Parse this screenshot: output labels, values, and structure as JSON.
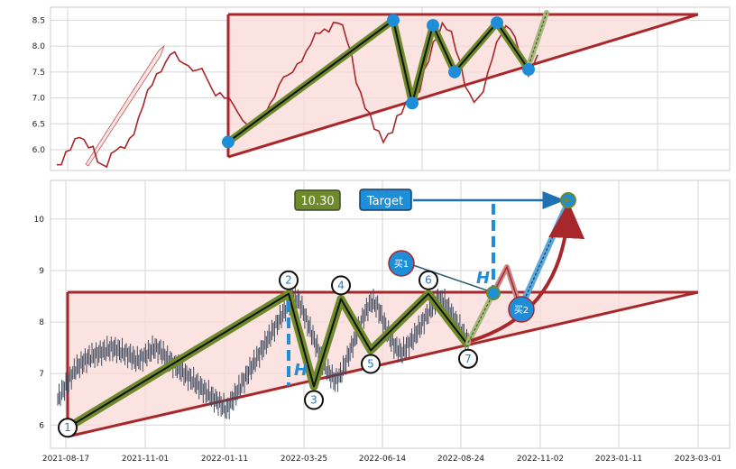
{
  "chart_data": [
    {
      "type": "line",
      "panel": "overview",
      "ylim": [
        5.6,
        8.75
      ],
      "y_ticks": [
        "6.0",
        "6.5",
        "7.0",
        "7.5",
        "8.0",
        "8.5"
      ],
      "grid": true,
      "colors": {
        "price": "#a8272b",
        "pattern": "#a8272b",
        "fill": "#f8dad6",
        "zigzag": "#6e8a2a",
        "node": "#1f8ed8"
      },
      "series": [
        {
          "name": "",
          "values": [
            5.65,
            5.72,
            5.85,
            6.05,
            6.2,
            6.35,
            6.15,
            6.05,
            5.95,
            5.8,
            5.7,
            5.78,
            5.9,
            6.0,
            5.95,
            6.05,
            6.2,
            6.4,
            6.6,
            6.85,
            7.05,
            7.25,
            7.45,
            7.6,
            7.7,
            7.85,
            7.8,
            7.7,
            7.65,
            7.7,
            7.55,
            7.55,
            7.5,
            7.35,
            7.2,
            7.1,
            7.15,
            7.0,
            6.95,
            6.8,
            6.7,
            6.6,
            6.55,
            6.5,
            6.45,
            6.55,
            6.7,
            6.9,
            7.1,
            7.25,
            7.4,
            7.35,
            7.5,
            7.65,
            7.8,
            7.9,
            8.05,
            8.15,
            8.25,
            8.3,
            8.38,
            8.45,
            8.48,
            8.3,
            8.1,
            7.8,
            7.4,
            7.1,
            6.85,
            6.6,
            6.4,
            6.3,
            6.25,
            6.3,
            6.4,
            6.55,
            6.7,
            6.85,
            7.0,
            7.05,
            7.2,
            7.45,
            7.7,
            8.0,
            8.25,
            8.45,
            8.4,
            8.2,
            7.9,
            7.6,
            7.3,
            7.1,
            7.0,
            6.95,
            7.1,
            7.4,
            7.8,
            8.1,
            8.3,
            8.35,
            8.3,
            8.1,
            7.9,
            7.7,
            7.5,
            7.6,
            7.8
          ]
        }
      ],
      "pattern_nodes": [
        6.15,
        8.5,
        6.9,
        8.4,
        7.5,
        8.45,
        7.55
      ]
    },
    {
      "type": "line",
      "panel": "detail",
      "ylim": [
        5.55,
        10.75
      ],
      "y_ticks": [
        "6",
        "7",
        "8",
        "9",
        "10"
      ],
      "x_ticks": [
        "2021-08-17",
        "2021-11-01",
        "2022-01-11",
        "2022-03-25",
        "2022-06-14",
        "2022-08-24",
        "2022-11-02",
        "2023-01-11",
        "2023-03-01"
      ],
      "grid": true,
      "colors": {
        "price": "#3d4a5e",
        "pattern": "#a8272b",
        "fill": "#f8dad6",
        "zigzag": "#6e8a2a",
        "target": "#1f6fb5",
        "hbar": "#1f8ed8"
      },
      "series": [
        {
          "name": "",
          "values": [
            6.5,
            6.7,
            6.9,
            7.1,
            7.2,
            7.3,
            7.35,
            7.4,
            7.45,
            7.5,
            7.45,
            7.4,
            7.35,
            7.25,
            7.3,
            7.4,
            7.5,
            7.45,
            7.3,
            7.2,
            7.1,
            7.0,
            6.9,
            6.8,
            6.7,
            6.6,
            6.5,
            6.4,
            6.3,
            6.5,
            6.7,
            6.9,
            7.1,
            7.3,
            7.5,
            7.7,
            7.9,
            8.1,
            8.3,
            8.5,
            8.4,
            8.1,
            7.8,
            7.5,
            7.2,
            7.0,
            6.85,
            7.0,
            7.3,
            7.6,
            7.9,
            8.2,
            8.4,
            8.3,
            8.0,
            7.7,
            7.5,
            7.4,
            7.55,
            7.7,
            7.9,
            8.1,
            8.3,
            8.45,
            8.4,
            8.2,
            8.0,
            7.8,
            7.6
          ]
        }
      ],
      "pattern_nodes": [
        {
          "label": "1",
          "value": 5.95
        },
        {
          "label": "2",
          "value": 8.55
        },
        {
          "label": "3",
          "value": 6.75
        },
        {
          "label": "4",
          "value": 8.45
        },
        {
          "label": "5",
          "value": 7.45
        },
        {
          "label": "6",
          "value": 8.55
        },
        {
          "label": "7",
          "value": 7.55
        }
      ],
      "annotations": {
        "value_box": "10.30",
        "target_label": "Target",
        "target_value": 10.3,
        "h_label": "H",
        "buy1_label": "买1",
        "buy2_label": "买2"
      }
    }
  ]
}
